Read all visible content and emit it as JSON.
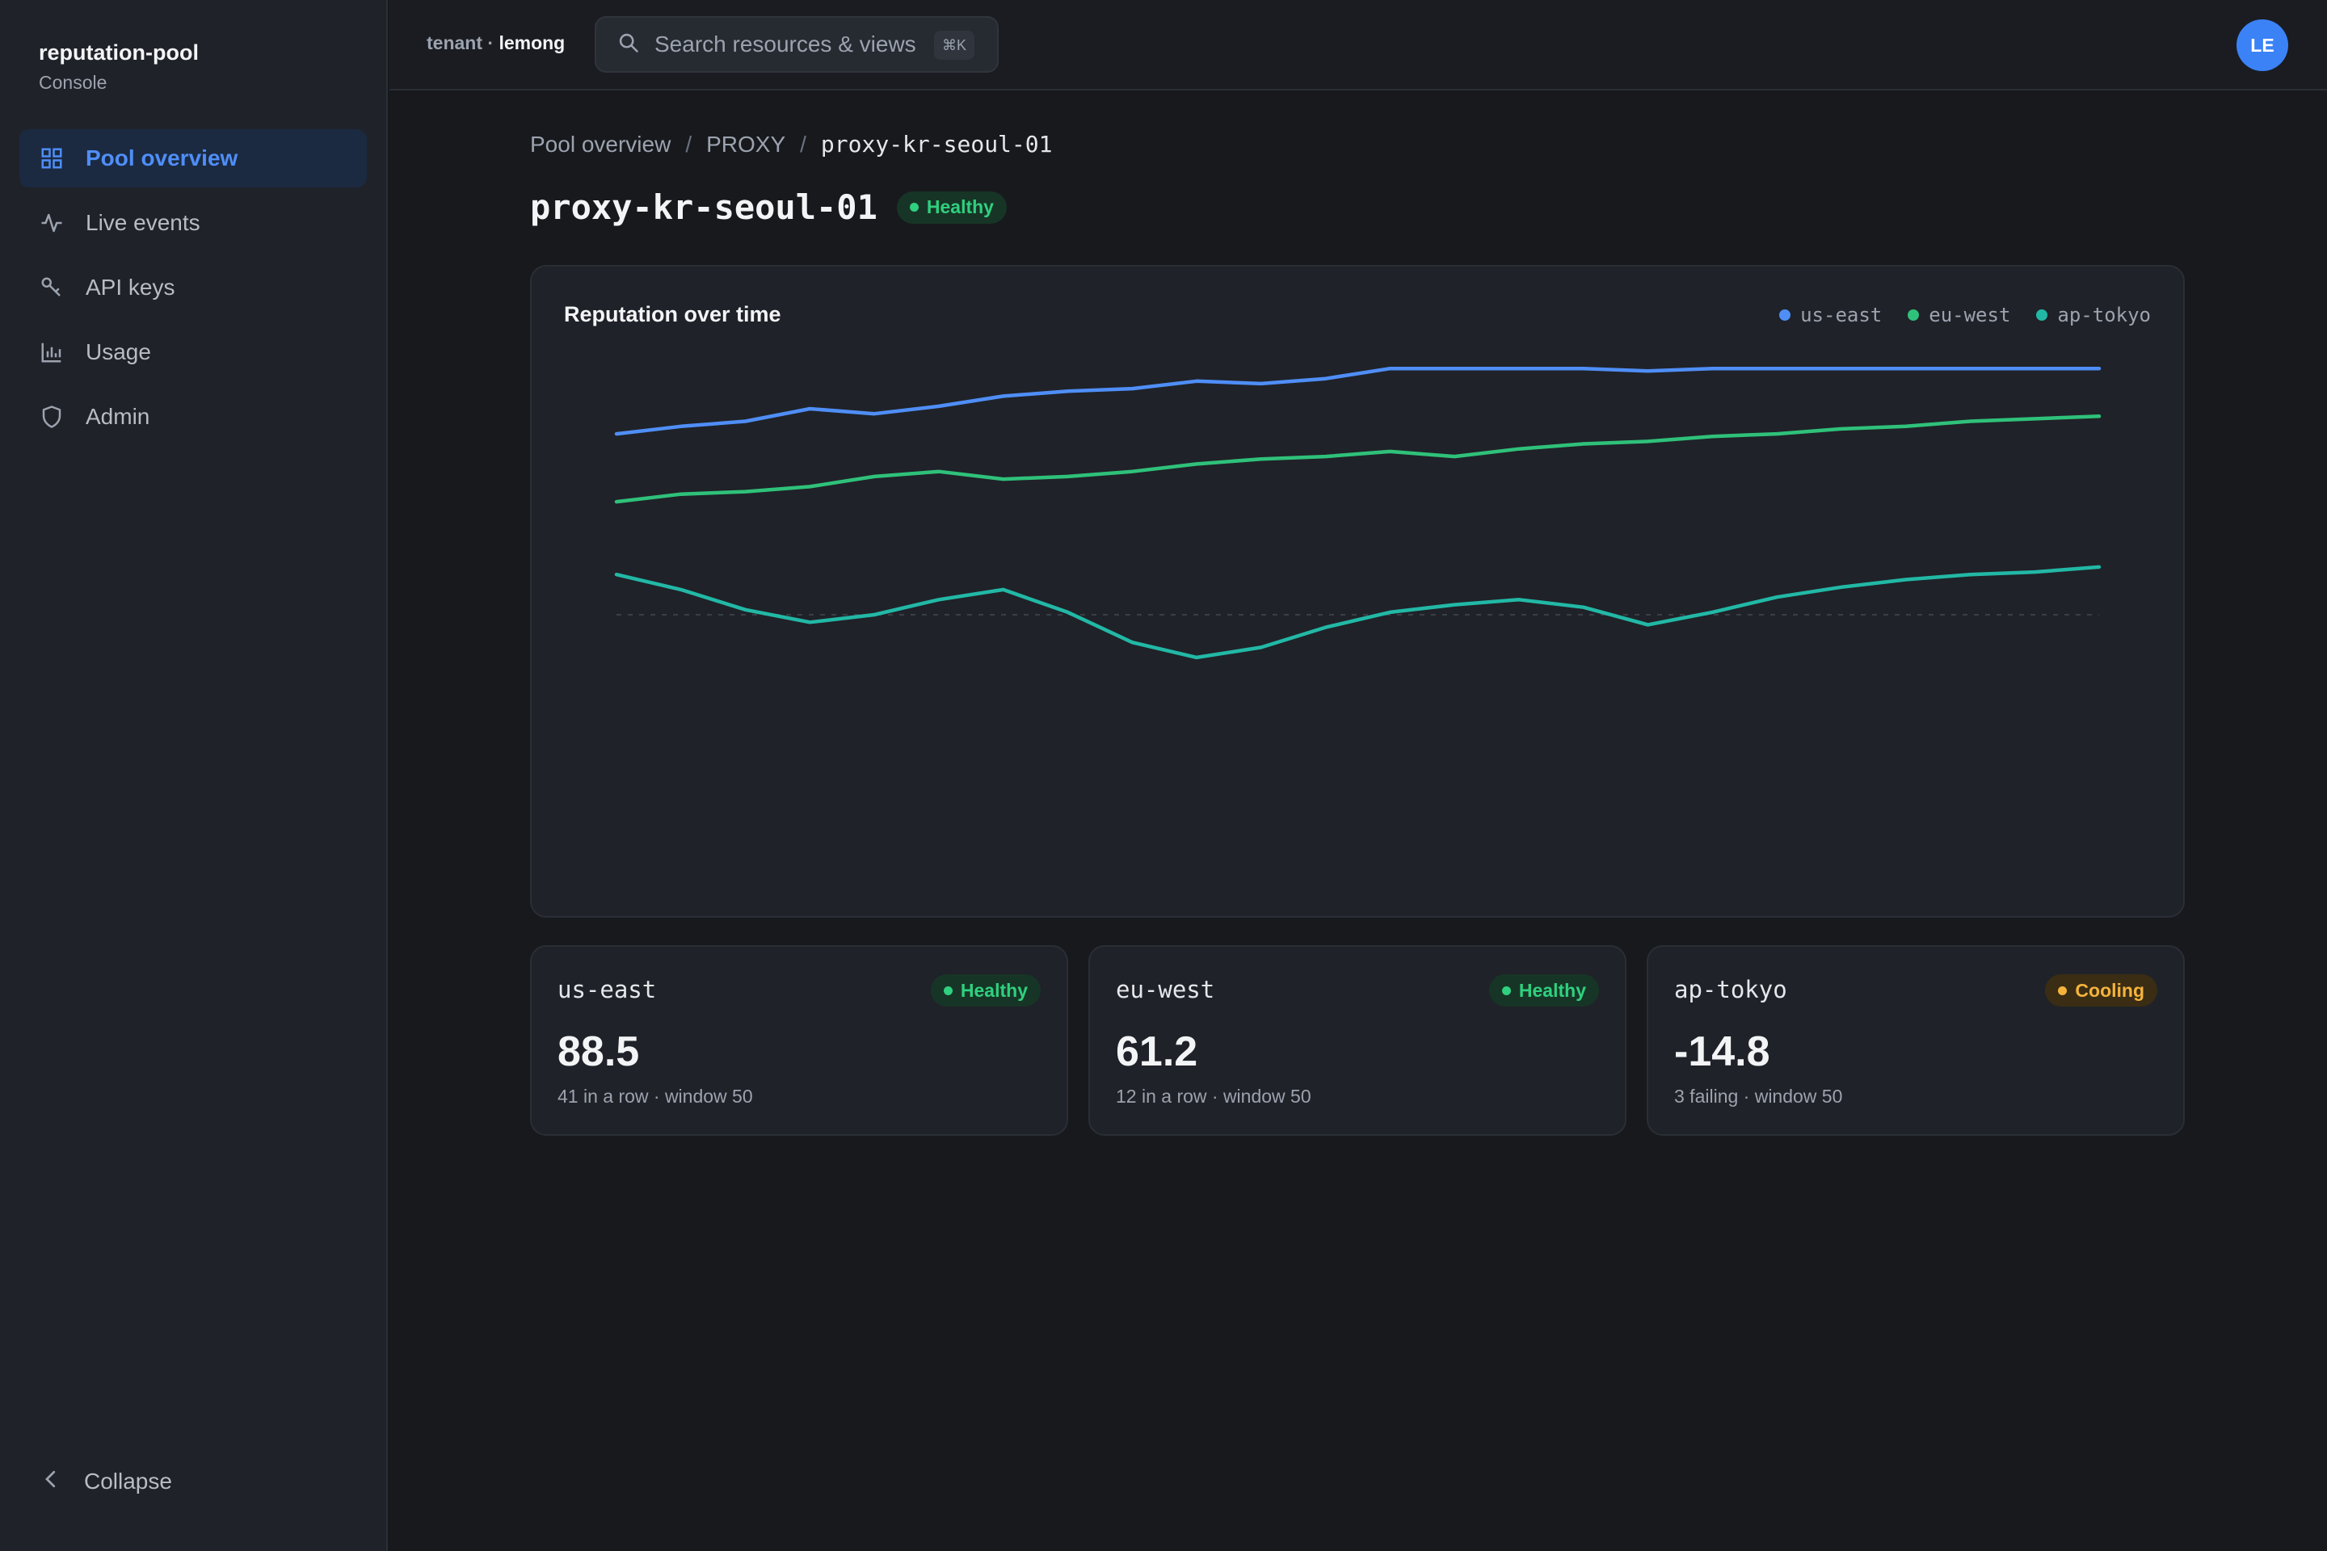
{
  "brand": {
    "name": "reputation-pool",
    "subtitle": "Console"
  },
  "sidebar": {
    "items": [
      {
        "label": "Pool overview",
        "icon": "grid-icon",
        "active": true
      },
      {
        "label": "Live events",
        "icon": "activity-icon"
      },
      {
        "label": "API keys",
        "icon": "key-icon"
      },
      {
        "label": "Usage",
        "icon": "bar-chart-icon"
      },
      {
        "label": "Admin",
        "icon": "shield-icon"
      }
    ],
    "collapse_label": "Collapse"
  },
  "topbar": {
    "tenant_prefix": "tenant · ",
    "tenant_name": "lemong",
    "search_placeholder": "Search resources & views",
    "shortcut": "⌘K",
    "avatar_initials": "LE"
  },
  "breadcrumb": {
    "root": "Pool overview",
    "section": "PROXY",
    "current": "proxy-kr-seoul-01"
  },
  "page": {
    "title": "proxy-kr-seoul-01",
    "status": "Healthy"
  },
  "colors": {
    "us_east": "#4f8ef7",
    "eu_west": "#2fc17a",
    "ap_tokyo": "#22b8a6",
    "healthy": "#2fd07f",
    "cooling": "#f5b33b",
    "accent": "#4f8ef7"
  },
  "chart_data": {
    "type": "line",
    "title": "Reputation over time",
    "legend_position": "top-right",
    "grid": false,
    "zero_line": true,
    "ylim": [
      -100,
      100
    ],
    "x": [
      1,
      2,
      3,
      4,
      5,
      6,
      7,
      8,
      9,
      10,
      11,
      12,
      13,
      14,
      15,
      16,
      17,
      18,
      19,
      20,
      21,
      22,
      23,
      24
    ],
    "series": [
      {
        "name": "us-east",
        "color": "#4f8ef7",
        "values": [
          72,
          75,
          77,
          82,
          80,
          83,
          87,
          89,
          90,
          93,
          92,
          94,
          98,
          98,
          98,
          98,
          97,
          98,
          98,
          98,
          98,
          98,
          98,
          98
        ]
      },
      {
        "name": "eu-west",
        "color": "#2fc17a",
        "values": [
          45,
          48,
          49,
          51,
          55,
          57,
          54,
          55,
          57,
          60,
          62,
          63,
          65,
          63,
          66,
          68,
          69,
          71,
          72,
          74,
          75,
          77,
          78,
          79
        ]
      },
      {
        "name": "ap-tokyo",
        "color": "#22b8a6",
        "values": [
          16,
          10,
          2,
          -3,
          0,
          6,
          10,
          1,
          -11,
          -17,
          -13,
          -5,
          1,
          4,
          6,
          3,
          -4,
          1,
          7,
          11,
          14,
          16,
          17,
          19
        ]
      }
    ]
  },
  "regions": [
    {
      "name": "us-east",
      "status": "Healthy",
      "status_class": "healthy",
      "value": "88.5",
      "meta": "41 in a row · window 50"
    },
    {
      "name": "eu-west",
      "status": "Healthy",
      "status_class": "healthy",
      "value": "61.2",
      "meta": "12 in a row · window 50"
    },
    {
      "name": "ap-tokyo",
      "status": "Cooling",
      "status_class": "cooling",
      "value": "-14.8",
      "meta": "3 failing · window 50"
    }
  ]
}
